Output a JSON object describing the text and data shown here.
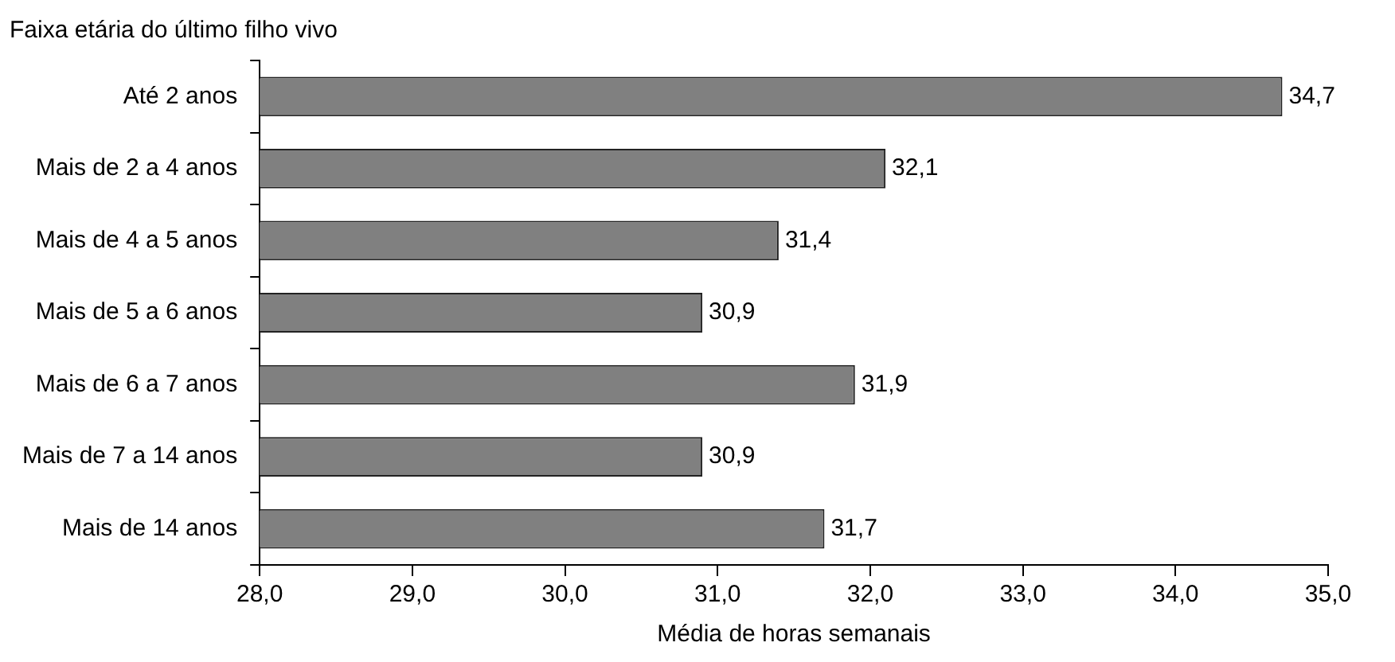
{
  "chart_data": {
    "type": "bar",
    "orientation": "horizontal",
    "ylabel": "Faixa etária do último filho vivo",
    "xlabel": "Média de horas semanais",
    "categories": [
      "Até 2 anos",
      "Mais de 2 a 4 anos",
      "Mais de 4 a 5 anos",
      "Mais de 5 a 6 anos",
      "Mais de 6 a 7 anos",
      "Mais de 7 a 14 anos",
      "Mais de 14 anos"
    ],
    "values": [
      34.7,
      32.1,
      31.4,
      30.9,
      31.9,
      30.9,
      31.7
    ],
    "value_labels": [
      "34,7",
      "32,1",
      "31,4",
      "30,9",
      "31,9",
      "30,9",
      "31,7"
    ],
    "color": "#808080",
    "xlim": [
      28,
      35
    ],
    "xticks": [
      {
        "value": 28,
        "label": "28,0"
      },
      {
        "value": 29,
        "label": "29,0"
      },
      {
        "value": 30,
        "label": "30,0"
      },
      {
        "value": 31,
        "label": "31,0"
      },
      {
        "value": 32,
        "label": "32,0"
      },
      {
        "value": 33,
        "label": "33,0"
      },
      {
        "value": 34,
        "label": "34,0"
      },
      {
        "value": 35,
        "label": "35,0"
      }
    ],
    "grid": false,
    "legend": false
  }
}
